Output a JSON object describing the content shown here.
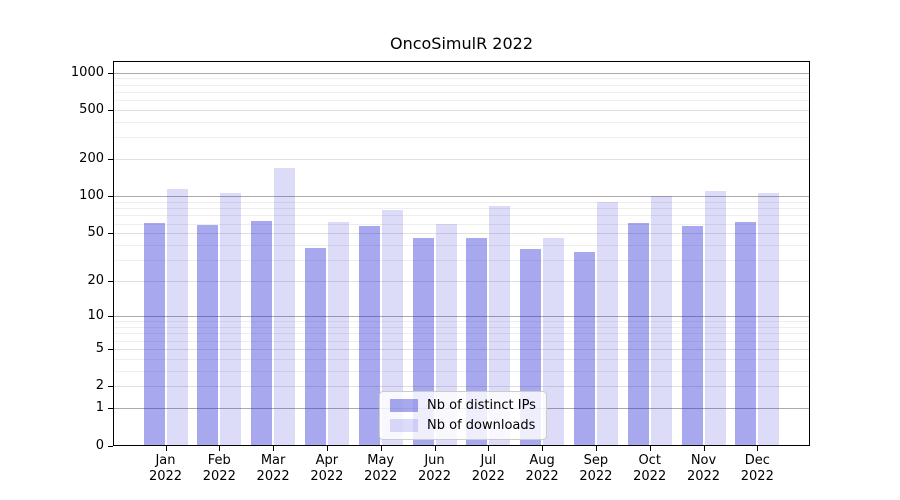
{
  "chart_data": {
    "type": "bar",
    "title": "OncoSimulR 2022",
    "categories": [
      "Jan 2022",
      "Feb 2022",
      "Mar 2022",
      "Apr 2022",
      "May 2022",
      "Jun 2022",
      "Jul 2022",
      "Aug 2022",
      "Sep 2022",
      "Oct 2022",
      "Nov 2022",
      "Dec 2022"
    ],
    "series": [
      {
        "name": "Nb of distinct IPs",
        "color": "rgba(38,38,213,0.40)",
        "color_hex_on_white": "#a8a8ee",
        "values": [
          61,
          58,
          63,
          38,
          57,
          46,
          46,
          37,
          35,
          61,
          57,
          62
        ]
      },
      {
        "name": "Nb of downloads",
        "color": "rgba(38,38,213,0.16)",
        "color_hex_on_white": "#dcdcf8",
        "values": [
          114,
          106,
          171,
          62,
          78,
          60,
          84,
          46,
          90,
          100,
          110,
          107
        ]
      }
    ],
    "xlabel": "",
    "ylabel": "",
    "y_ticks": [
      0,
      1,
      2,
      5,
      10,
      20,
      50,
      100,
      200,
      500,
      1000
    ],
    "y_scale": "log10(1+x)",
    "ylim": [
      0,
      1230
    ],
    "grid": true,
    "legend_position": "lower center"
  },
  "colors": {
    "grid_major": "#ababab",
    "grid_mid": "#e0e0e0",
    "grid_minor": "#eeeeee",
    "spine": "#000000",
    "text": "#000000",
    "background": "#ffffff"
  }
}
